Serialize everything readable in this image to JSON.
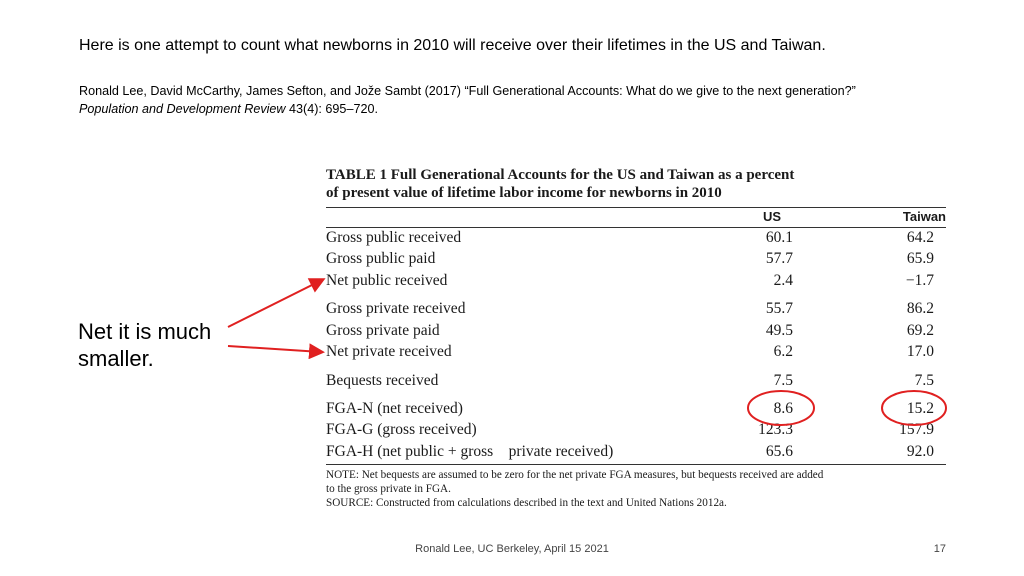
{
  "slide": {
    "heading": "Here is one attempt to count what newborns in 2010 will receive over their lifetimes in the US and Taiwan.",
    "citation_line1": "Ronald Lee, David McCarthy, James Sefton, and Jože Sambt (2017) “Full Generational Accounts: What do we give to the next generation?”",
    "citation_journal": "Population and Development Review",
    "citation_rest": " 43(4): 695–720.",
    "callout_line1": "Net it is much",
    "callout_line2": "smaller.",
    "footer": "Ronald Lee, UC Berkeley, April 15 2021",
    "page_number": "17"
  },
  "table": {
    "title_line1": "TABLE 1  Full Generational Accounts for the US and Taiwan as a percent",
    "title_line2": "of present value of lifetime labor income for newborns in 2010",
    "col_us": "US",
    "col_taiwan": "Taiwan",
    "rows": [
      {
        "label": "Gross public received",
        "us": "60.1",
        "taiwan": "64.2"
      },
      {
        "label": "Gross public paid",
        "us": "57.7",
        "taiwan": "65.9"
      },
      {
        "label": "Net public received",
        "us": "2.4",
        "taiwan": "−1.7"
      },
      {
        "label": "Gross private received",
        "us": "55.7",
        "taiwan": "86.2"
      },
      {
        "label": "Gross private paid",
        "us": "49.5",
        "taiwan": "69.2"
      },
      {
        "label": "Net private received",
        "us": "6.2",
        "taiwan": "17.0"
      },
      {
        "label": "Bequests received",
        "us": "7.5",
        "taiwan": "7.5"
      },
      {
        "label": "FGA-N (net received)",
        "us": "8.6",
        "taiwan": "15.2"
      },
      {
        "label": "FGA-G (gross received)",
        "us": "123.3",
        "taiwan": "157.9"
      },
      {
        "label": "FGA-H (net public + gross    private received)",
        "us": "65.6",
        "taiwan": "92.0"
      }
    ],
    "note_line1": "NOTE: Net bequests are assumed to be zero for the net private FGA measures, but bequests received are added",
    "note_line2": "to the gross private in FGA.",
    "source_line": "SOURCE: Constructed from calculations described in the text and United Nations 2012a."
  },
  "colors": {
    "annotation": "#e02020",
    "text": "#000000"
  }
}
